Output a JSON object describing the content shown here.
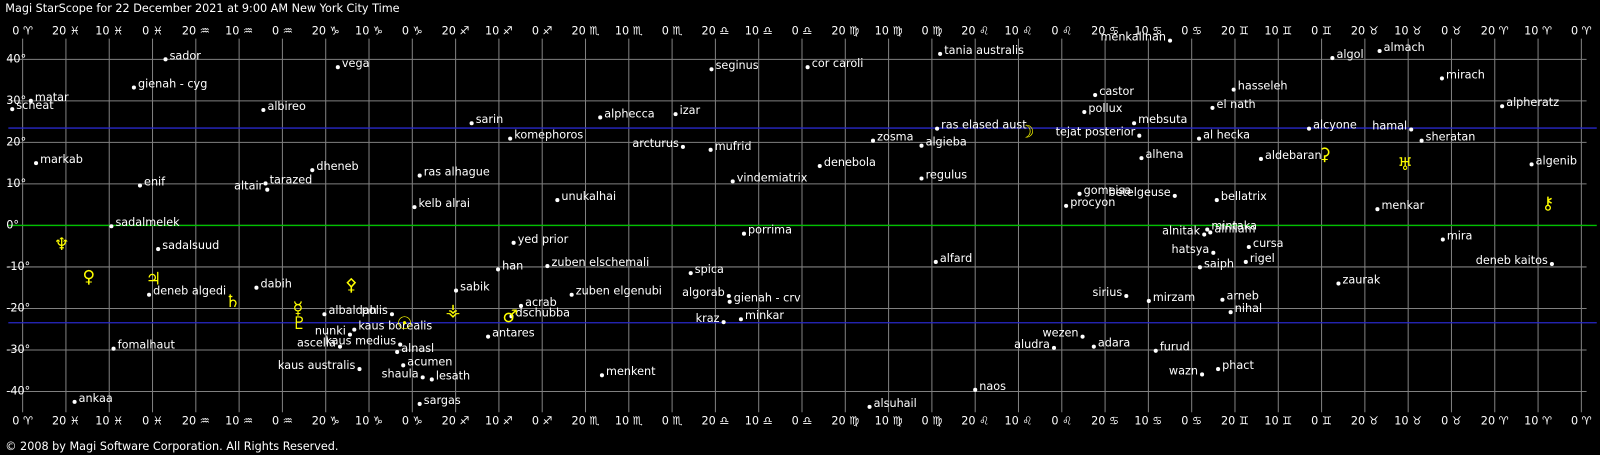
{
  "chart_data": {
    "type": "scatter",
    "title": "Magi StarScope for 22 December 2021 at 9:00 AM New York City Time",
    "footer": "© 2008 by Magi Software Corporation. All Rights Reserved.",
    "xlim": [
      363.3,
      -1.2
    ],
    "ylim": [
      -45,
      45
    ],
    "grid": true,
    "grid_color": "#808080",
    "background": "#000000",
    "xticks": [
      {
        "value": 360,
        "label": "0 ♈"
      },
      {
        "value": 350,
        "label": "20 ♓"
      },
      {
        "value": 340,
        "label": "10 ♓"
      },
      {
        "value": 330,
        "label": "0 ♓"
      },
      {
        "value": 320,
        "label": "20 ♒"
      },
      {
        "value": 310,
        "label": "10 ♒"
      },
      {
        "value": 300,
        "label": "0 ♒"
      },
      {
        "value": 290,
        "label": "20 ♑"
      },
      {
        "value": 280,
        "label": "10 ♑"
      },
      {
        "value": 270,
        "label": "0 ♑"
      },
      {
        "value": 260,
        "label": "20 ♐"
      },
      {
        "value": 250,
        "label": "10 ♐"
      },
      {
        "value": 240,
        "label": "0 ♐"
      },
      {
        "value": 230,
        "label": "20 ♏"
      },
      {
        "value": 220,
        "label": "10 ♏"
      },
      {
        "value": 210,
        "label": "0 ♏"
      },
      {
        "value": 200,
        "label": "20 ♎"
      },
      {
        "value": 190,
        "label": "10 ♎"
      },
      {
        "value": 180,
        "label": "0 ♎"
      },
      {
        "value": 170,
        "label": "20 ♍"
      },
      {
        "value": 160,
        "label": "10 ♍"
      },
      {
        "value": 150,
        "label": "0 ♍"
      },
      {
        "value": 140,
        "label": "20 ♌"
      },
      {
        "value": 130,
        "label": "10 ♌"
      },
      {
        "value": 120,
        "label": "0 ♌"
      },
      {
        "value": 110,
        "label": "20 ♋"
      },
      {
        "value": 100,
        "label": "10 ♋"
      },
      {
        "value": 90,
        "label": "0 ♋"
      },
      {
        "value": 80,
        "label": "20 ♊"
      },
      {
        "value": 70,
        "label": "10 ♊"
      },
      {
        "value": 60,
        "label": "0 ♊"
      },
      {
        "value": 50,
        "label": "20 ♉"
      },
      {
        "value": 40,
        "label": "10 ♉"
      },
      {
        "value": 30,
        "label": "0 ♉"
      },
      {
        "value": 20,
        "label": "20 ♈"
      },
      {
        "value": 10,
        "label": "10 ♈"
      },
      {
        "value": 0,
        "label": "0 ♈"
      }
    ],
    "yticks": [
      {
        "value": 40,
        "label": "40°"
      },
      {
        "value": 30,
        "label": "30°"
      },
      {
        "value": 20,
        "label": "20°"
      },
      {
        "value": 10,
        "label": "10°"
      },
      {
        "value": 0,
        "label": "0°"
      },
      {
        "value": -10,
        "label": "-10°"
      },
      {
        "value": -20,
        "label": "-20°"
      },
      {
        "value": -30,
        "label": "-30°"
      },
      {
        "value": -40,
        "label": "-40°"
      }
    ],
    "hlines": [
      {
        "value": 0,
        "color": "#00c000"
      },
      {
        "value": 23.44,
        "color": "#2828c8"
      },
      {
        "value": -23.44,
        "color": "#2828c8"
      }
    ],
    "series": [
      {
        "color": "#ffffff",
        "labels": [
          "sador",
          "vega",
          "gienah - cyg",
          "matar",
          "scheat",
          "albireo",
          "markab",
          "enif",
          "dheneb",
          "tarazed",
          "altair",
          "sadalmelek",
          "sadalsuud",
          "deneb algedi",
          "dabih",
          "fomalhaut",
          "ankaa",
          "albaldah",
          "polis",
          "nunki",
          "kaus borealis",
          "ascella",
          "kaus medius",
          "alnasl",
          "kaus australis",
          "acumen",
          "shaula",
          "lesath",
          "sargas",
          "antares",
          "sabik",
          "han",
          "yed prior",
          "zuben elschemali",
          "acrab",
          "dschubba",
          "zuben elgenubi",
          "menkent",
          "spica",
          "algorab",
          "gienah - crv",
          "kraz",
          "minkar",
          "porrima",
          "vindemiatrix",
          "unukalhai",
          "kelb alrai",
          "ras alhague",
          "sarin",
          "komephoros",
          "alphecca",
          "izar",
          "arcturus",
          "mufrid",
          "seginus",
          "cor caroli",
          "denebola",
          "zosma",
          "tania australis",
          "ras elased aust",
          "algieba",
          "regulus",
          "alfard",
          "alsuhail",
          "naos",
          "aludra",
          "wezen",
          "adara",
          "furud",
          "wazn",
          "phact",
          "sirius",
          "mirzam",
          "arneb",
          "nihal",
          "saiph",
          "hatsya",
          "rigel",
          "cursa",
          "mintaka",
          "alnitak",
          "alnilam",
          "betelgeuse",
          "bellatrix",
          "gomeisa",
          "procyon",
          "castor",
          "pollux",
          "mebsuta",
          "tejat posterior",
          "alhena",
          "menkalinan",
          "el nath",
          "hasseleh",
          "al hecka",
          "aldebaran",
          "alcyone",
          "algol",
          "almach",
          "mirach",
          "alpheratz",
          "hamal",
          "sheratan",
          "algenib",
          "menkar",
          "zaurak",
          "mira",
          "deneb kaitos"
        ],
        "x": [
          327.0,
          287.2,
          334.3,
          358.1,
          362.4,
          304.4,
          356.9,
          332.9,
          293.1,
          303.9,
          303.5,
          339.5,
          328.7,
          330.8,
          306.0,
          339.0,
          348.0,
          290.3,
          274.7,
          284.4,
          283.4,
          286.7,
          272.8,
          273.5,
          282.2,
          272.1,
          267.6,
          265.5,
          268.3,
          252.5,
          259.9,
          250.2,
          246.6,
          238.8,
          244.9,
          247.1,
          233.2,
          226.2,
          205.7,
          196.9,
          196.7,
          198.1,
          194.1,
          193.4,
          196.0,
          236.5,
          269.5,
          268.3,
          256.3,
          247.4,
          226.6,
          209.2,
          207.5,
          201.1,
          200.9,
          178.7,
          175.9,
          163.6,
          148.1,
          148.8,
          152.4,
          152.4,
          149.1,
          164.4,
          140.0,
          121.8,
          115.2,
          112.6,
          98.3,
          87.6,
          83.9,
          105.1,
          99.9,
          82.9,
          81.0,
          88.1,
          85.0,
          77.5,
          76.8,
          86.4,
          87.1,
          85.7,
          93.9,
          84.2,
          115.9,
          119.0,
          112.3,
          114.8,
          103.3,
          102.1,
          101.6,
          95.0,
          85.2,
          80.3,
          88.3,
          74.0,
          62.9,
          57.5,
          46.6,
          32.2,
          18.3,
          39.3,
          36.9,
          11.5,
          47.1,
          56.1,
          32.0,
          6.8
        ],
        "values": [
          40.0,
          38.1,
          33.2,
          30.0,
          28.0,
          27.8,
          15.0,
          9.6,
          13.3,
          10.1,
          8.6,
          -0.2,
          -5.7,
          -16.7,
          -15.0,
          -29.7,
          -42.5,
          -21.4,
          -21.4,
          -26.3,
          -25.1,
          -29.2,
          -28.7,
          -30.5,
          -34.6,
          -33.7,
          -36.6,
          -37.1,
          -43.0,
          -26.8,
          -15.7,
          -10.6,
          -4.2,
          -9.8,
          -19.4,
          -21.9,
          -16.7,
          -36.1,
          -11.5,
          -17.0,
          -18.4,
          -23.3,
          -22.6,
          -2.0,
          10.6,
          6.1,
          4.4,
          12.0,
          24.6,
          20.9,
          26.0,
          26.8,
          18.9,
          18.2,
          37.6,
          38.1,
          14.3,
          20.4,
          41.3,
          23.3,
          19.2,
          11.3,
          -8.8,
          -43.7,
          -39.6,
          -29.5,
          -26.8,
          -29.2,
          -30.2,
          -35.9,
          -34.6,
          -17.0,
          -18.2,
          -17.9,
          -20.9,
          -10.1,
          -6.6,
          -8.8,
          -5.2,
          -1.0,
          -2.2,
          -1.7,
          7.1,
          6.1,
          7.6,
          4.7,
          31.4,
          27.3,
          24.6,
          21.6,
          16.2,
          44.5,
          28.3,
          32.7,
          20.9,
          16.0,
          23.3,
          40.3,
          42.0,
          35.4,
          28.7,
          23.1,
          20.4,
          14.7,
          3.9,
          -14.0,
          -3.4,
          -9.3
        ]
      },
      {
        "color": "#ffff00",
        "labels": [
          "♆",
          "♀",
          "♃",
          "♄",
          "☿",
          "♇",
          "⚴",
          "☉",
          "⚶",
          "♂",
          "☽",
          "⚳",
          "♅",
          "⚷"
        ],
        "x": [
          351.0,
          344.7,
          329.8,
          311.5,
          296.4,
          296.1,
          284.1,
          271.8,
          260.6,
          247.4,
          128.1,
          59.3,
          40.7,
          7.7
        ],
        "values": [
          -4.7,
          -12.5,
          -13.0,
          -18.4,
          -20.1,
          -23.8,
          -14.5,
          -23.8,
          -20.6,
          -22.1,
          22.4,
          17.0,
          14.5,
          5.2
        ]
      }
    ]
  }
}
